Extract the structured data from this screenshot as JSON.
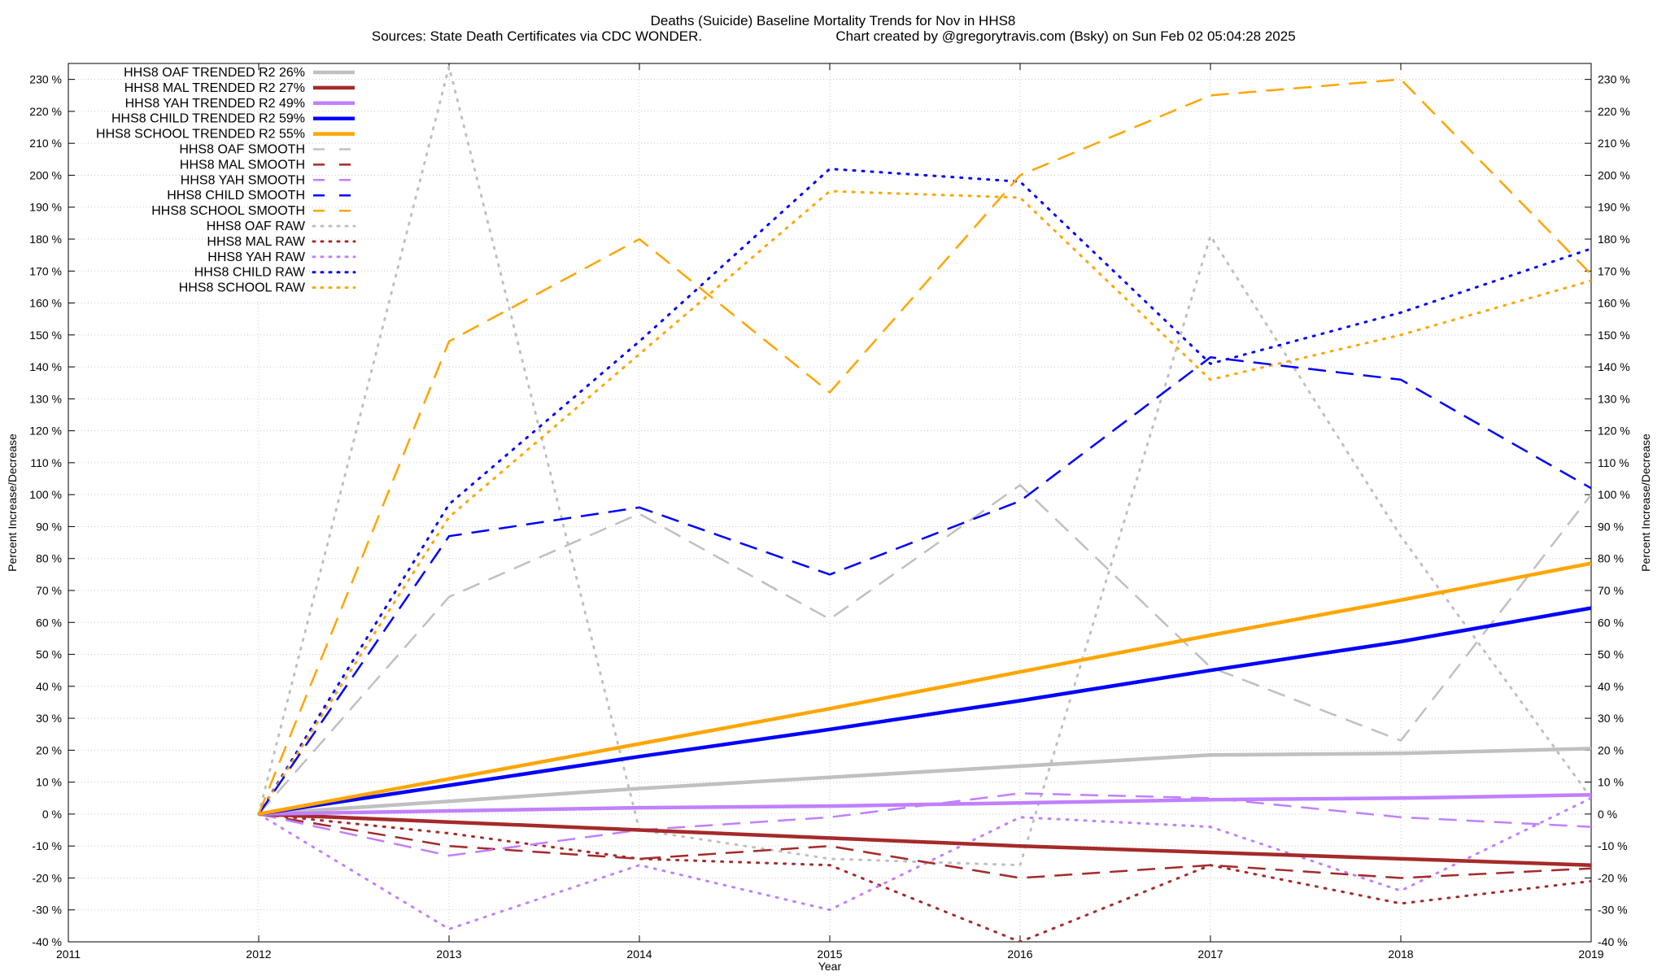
{
  "chart_data": {
    "type": "line",
    "title": "Deaths (Suicide)  Baseline Mortality Trends for Nov in HHS8",
    "subtitle_left": "Sources: State Death Certificates via CDC WONDER.",
    "subtitle_right": "Chart created by @gregorytravis.com (Bsky) on Sun Feb 02 05:04:28 2025",
    "xlabel": "Year",
    "ylabel_left": "Percent Increase/Decrease",
    "ylabel_right": "Percent Increase/Decrease",
    "xlim": [
      2011,
      2019
    ],
    "ylim": [
      -40,
      235
    ],
    "x_ticks": [
      2011,
      2012,
      2013,
      2014,
      2015,
      2016,
      2017,
      2018,
      2019
    ],
    "y_ticks": [
      -40,
      -30,
      -20,
      -10,
      0,
      10,
      20,
      30,
      40,
      50,
      60,
      70,
      80,
      90,
      100,
      110,
      120,
      130,
      140,
      150,
      160,
      170,
      180,
      190,
      200,
      210,
      220,
      230
    ],
    "y_tick_labels": [
      "-40 %",
      "-30 %",
      "-20 %",
      "-10 %",
      "0 %",
      "10 %",
      "20 %",
      "30 %",
      "40 %",
      "50 %",
      "60 %",
      "70 %",
      "80 %",
      "90 %",
      "100 %",
      "110 %",
      "120 %",
      "130 %",
      "140 %",
      "150 %",
      "160 %",
      "170 %",
      "180 %",
      "190 %",
      "200 %",
      "210 %",
      "220 %",
      "230 %"
    ],
    "grid": true,
    "legend_position": "top-left",
    "x": [
      2012,
      2013,
      2014,
      2015,
      2016,
      2017,
      2018,
      2019
    ],
    "series": [
      {
        "name": "HHS8 OAF TRENDED R2  26%",
        "style": "solid",
        "color": "#c0c0c0",
        "values": [
          0,
          4,
          8,
          11.5,
          15,
          18.5,
          19,
          20.5
        ]
      },
      {
        "name": "HHS8 MAL TRENDED R2  27%",
        "style": "solid",
        "color": "#a52a2a",
        "values": [
          0,
          -2.5,
          -5,
          -7.5,
          -10,
          -12,
          -14,
          -16
        ]
      },
      {
        "name": "HHS8 YAH TRENDED R2  49%",
        "style": "solid",
        "color": "#c080ff",
        "values": [
          0,
          1,
          2,
          2.5,
          3.5,
          4.5,
          5,
          6
        ]
      },
      {
        "name": "HHS8 CHILD TRENDED R2  59%",
        "style": "solid",
        "color": "#0000ff",
        "values": [
          0,
          9,
          18,
          26.5,
          35.5,
          45,
          54,
          64.5
        ]
      },
      {
        "name": "HHS8 SCHOOL TRENDED R2  55%",
        "style": "solid",
        "color": "#ffa500",
        "values": [
          0,
          11,
          22,
          33,
          44.5,
          56,
          67,
          78.5
        ]
      },
      {
        "name": "HHS8 OAF SMOOTH",
        "style": "dashed",
        "color": "#c0c0c0",
        "values": [
          0,
          68,
          94,
          61,
          103,
          46,
          23,
          100
        ]
      },
      {
        "name": "HHS8 MAL SMOOTH",
        "style": "dashed",
        "color": "#a52a2a",
        "values": [
          0,
          -10,
          -14,
          -10,
          -20,
          -16,
          -20,
          -17
        ]
      },
      {
        "name": "HHS8 YAH SMOOTH",
        "style": "dashed",
        "color": "#c080ff",
        "values": [
          0,
          -13,
          -5,
          -1,
          6.5,
          5,
          -1,
          -4
        ]
      },
      {
        "name": "HHS8 CHILD SMOOTH",
        "style": "dashed",
        "color": "#0000ff",
        "values": [
          0,
          87,
          96,
          75,
          98,
          143,
          136,
          102
        ]
      },
      {
        "name": "HHS8 SCHOOL SMOOTH",
        "style": "dashed",
        "color": "#ffa500",
        "values": [
          0,
          148,
          180,
          132,
          200,
          225,
          230,
          169
        ]
      },
      {
        "name": "HHS8 OAF RAW",
        "style": "dotted",
        "color": "#c0c0c0",
        "values": [
          0,
          234,
          -5,
          -14,
          -16,
          181,
          87,
          5
        ]
      },
      {
        "name": "HHS8 MAL RAW",
        "style": "dotted",
        "color": "#a52a2a",
        "values": [
          0,
          -6,
          -14,
          -16,
          -40,
          -16,
          -28,
          -21
        ]
      },
      {
        "name": "HHS8 YAH RAW",
        "style": "dotted",
        "color": "#c080ff",
        "values": [
          0,
          -36,
          -16,
          -30,
          -1,
          -4,
          -24,
          5
        ]
      },
      {
        "name": "HHS8 CHILD RAW",
        "style": "dotted",
        "color": "#0000ff",
        "values": [
          0,
          97,
          148,
          202,
          198,
          141,
          157,
          177
        ]
      },
      {
        "name": "HHS8 SCHOOL RAW",
        "style": "dotted",
        "color": "#ffa500",
        "values": [
          0,
          93,
          144,
          195,
          193,
          136,
          150,
          167
        ]
      }
    ]
  }
}
